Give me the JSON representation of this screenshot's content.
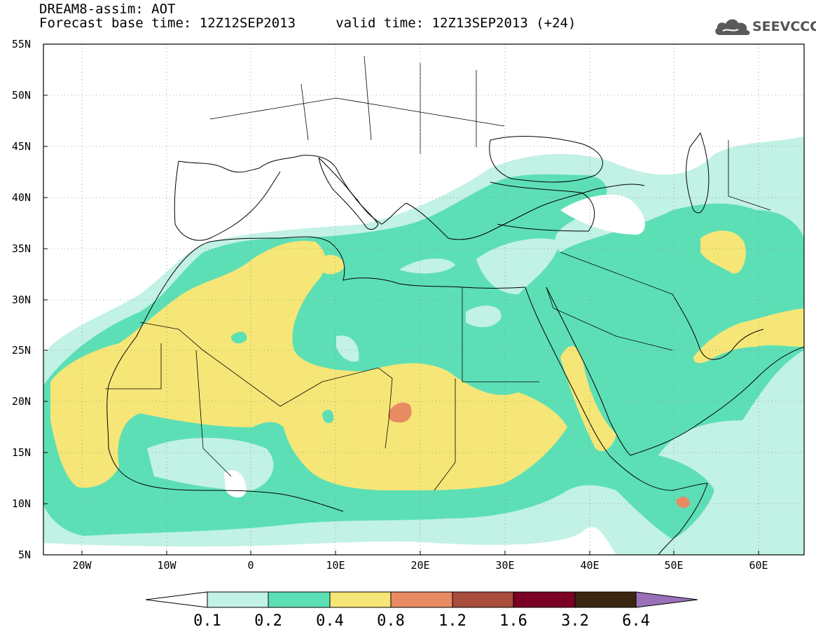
{
  "header": {
    "line1": "DREAM8-assim: AOT",
    "line2": "Forecast base time: 12Z12SEP2013     valid time: 12Z13SEP2013 (+24)"
  },
  "logo": {
    "text": "SEEVCCC",
    "icon": "cloud-logo-icon"
  },
  "map": {
    "lon_range": [
      -25,
      65
    ],
    "lat_range": [
      5,
      55
    ],
    "lat_labels": [
      "55N",
      "50N",
      "45N",
      "40N",
      "35N",
      "30N",
      "25N",
      "20N",
      "15N",
      "10N",
      "5N"
    ],
    "lon_labels": [
      "20W",
      "10W",
      "0",
      "10E",
      "20E",
      "30E",
      "40E",
      "50E",
      "60E"
    ]
  },
  "colorbar": {
    "levels": [
      "0.1",
      "0.2",
      "0.4",
      "0.8",
      "1.2",
      "1.6",
      "3.2",
      "6.4"
    ],
    "colors": [
      "#ffffff",
      "#c0f0e6",
      "#5ade b4",
      "#f6e678",
      "#e88a64",
      "#a84c3c",
      "#7a0024",
      "#3a2610",
      "#9a70b8"
    ]
  }
}
